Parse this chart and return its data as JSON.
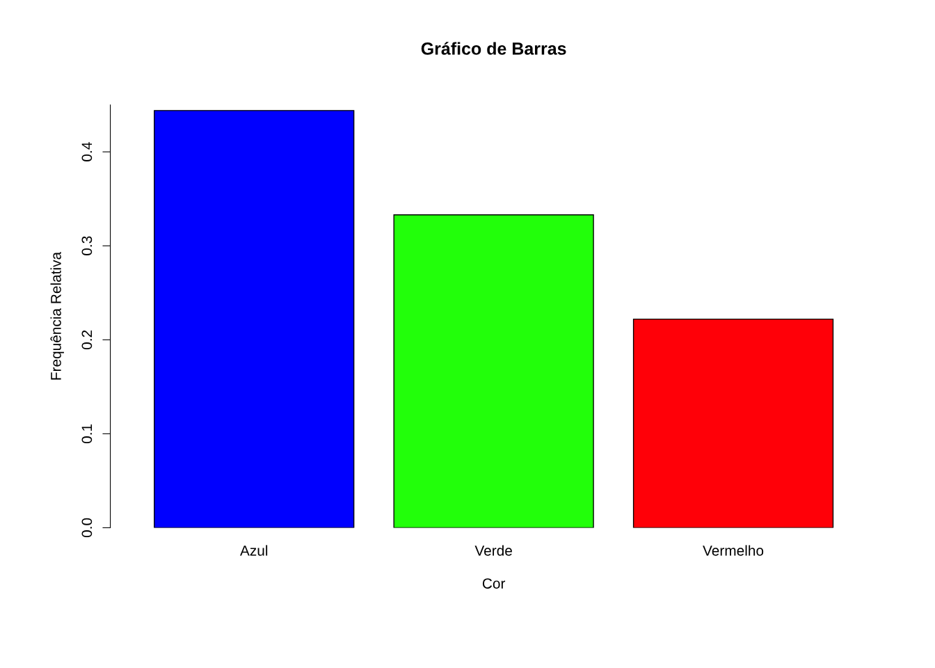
{
  "chart_data": {
    "type": "bar",
    "title": "Gráfico de Barras",
    "xlabel": "Cor",
    "ylabel": "Frequência Relativa",
    "categories": [
      "Azul",
      "Verde",
      "Vermelho"
    ],
    "values": [
      0.444,
      0.333,
      0.222
    ],
    "colors": [
      "#0000ff",
      "#22ff0a",
      "#ff0008"
    ],
    "ylim": [
      0,
      0.45
    ],
    "yticks": [
      {
        "value": 0,
        "label": "0.0"
      },
      0.1,
      0.2,
      0.3,
      0.4
    ],
    "grid": false
  }
}
